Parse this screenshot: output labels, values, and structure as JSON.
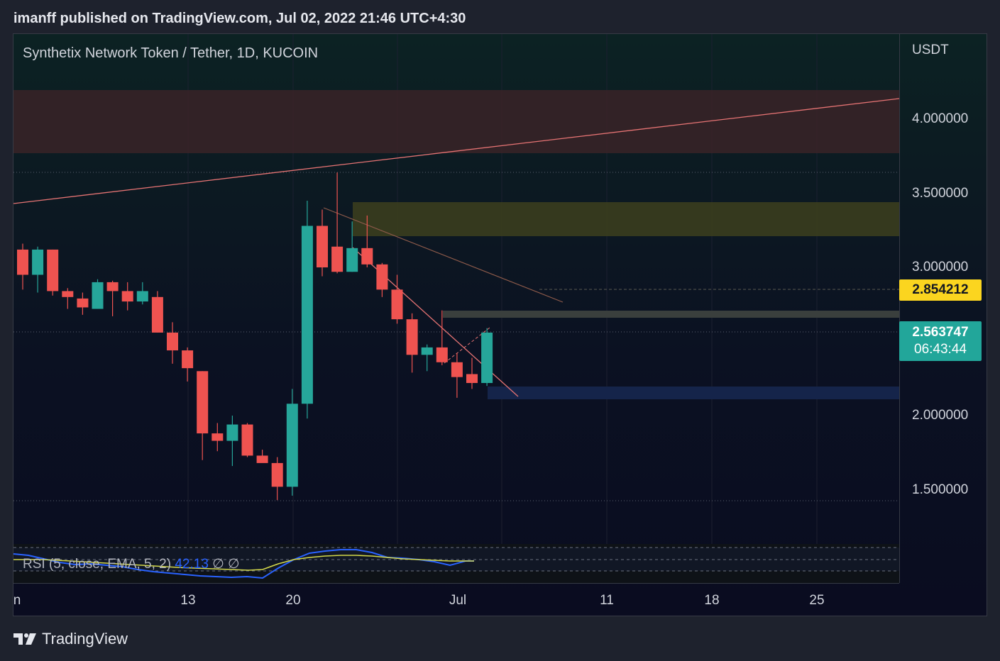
{
  "header": {
    "published": "imanff published on TradingView.com, Jul 02, 2022 21:46 UTC+4:30"
  },
  "chart": {
    "symbol": "Synthetix Network Token / Tether, 1D, KUCOIN",
    "currency": "USDT",
    "price_ticks": [
      "4.000000",
      "3.500000",
      "3.000000",
      "2.000000",
      "1.500000"
    ],
    "time_ticks": [
      "n",
      "13",
      "20",
      "Jul",
      "11",
      "18",
      "25"
    ],
    "last_price": "2.563747",
    "countdown": "06:43:44",
    "marked_price": "2.854212",
    "colors": {
      "up": "#26a69a",
      "down": "#ef5350",
      "marker": "#fbd51f"
    }
  },
  "rsi": {
    "label": "RSI (5, close, EMA, 5, 2)",
    "value": "42.13",
    "extra1": "∅",
    "extra2": "∅"
  },
  "footer": {
    "brand": "TradingView"
  },
  "chart_data": {
    "type": "candlestick",
    "title": "Synthetix Network Token / Tether, 1D, KUCOIN",
    "ylabel": "USDT",
    "ylim": [
      1.1,
      4.7
    ],
    "candles": [
      {
        "o": 3.12,
        "h": 3.16,
        "l": 2.85,
        "c": 2.95
      },
      {
        "o": 2.95,
        "h": 3.14,
        "l": 2.83,
        "c": 3.12
      },
      {
        "o": 3.12,
        "h": 3.12,
        "l": 2.81,
        "c": 2.84
      },
      {
        "o": 2.84,
        "h": 2.86,
        "l": 2.72,
        "c": 2.8
      },
      {
        "o": 2.79,
        "h": 2.83,
        "l": 2.68,
        "c": 2.73
      },
      {
        "o": 2.72,
        "h": 2.92,
        "l": 2.72,
        "c": 2.9
      },
      {
        "o": 2.9,
        "h": 2.91,
        "l": 2.67,
        "c": 2.84
      },
      {
        "o": 2.84,
        "h": 2.9,
        "l": 2.71,
        "c": 2.77
      },
      {
        "o": 2.77,
        "h": 2.9,
        "l": 2.75,
        "c": 2.84
      },
      {
        "o": 2.8,
        "h": 2.84,
        "l": 2.56,
        "c": 2.56
      },
      {
        "o": 2.56,
        "h": 2.63,
        "l": 2.35,
        "c": 2.44
      },
      {
        "o": 2.44,
        "h": 2.46,
        "l": 2.23,
        "c": 2.32
      },
      {
        "o": 2.3,
        "h": 2.3,
        "l": 1.7,
        "c": 1.88
      },
      {
        "o": 1.88,
        "h": 1.95,
        "l": 1.76,
        "c": 1.83
      },
      {
        "o": 1.83,
        "h": 2.0,
        "l": 1.66,
        "c": 1.94
      },
      {
        "o": 1.94,
        "h": 1.95,
        "l": 1.72,
        "c": 1.73
      },
      {
        "o": 1.73,
        "h": 1.77,
        "l": 1.71,
        "c": 1.68
      },
      {
        "o": 1.68,
        "h": 1.72,
        "l": 1.43,
        "c": 1.52
      },
      {
        "o": 1.52,
        "h": 2.18,
        "l": 1.46,
        "c": 2.08
      },
      {
        "o": 2.08,
        "h": 3.45,
        "l": 1.98,
        "c": 3.28
      },
      {
        "o": 3.28,
        "h": 3.39,
        "l": 2.94,
        "c": 3.0
      },
      {
        "o": 3.14,
        "h": 3.64,
        "l": 2.96,
        "c": 2.97
      },
      {
        "o": 2.97,
        "h": 3.31,
        "l": 2.97,
        "c": 3.13
      },
      {
        "o": 3.13,
        "h": 3.35,
        "l": 3.0,
        "c": 3.02
      },
      {
        "o": 3.02,
        "h": 3.03,
        "l": 2.8,
        "c": 2.85
      },
      {
        "o": 2.85,
        "h": 2.95,
        "l": 2.62,
        "c": 2.65
      },
      {
        "o": 2.65,
        "h": 2.69,
        "l": 2.29,
        "c": 2.41
      },
      {
        "o": 2.41,
        "h": 2.48,
        "l": 2.3,
        "c": 2.46
      },
      {
        "o": 2.46,
        "h": 2.71,
        "l": 2.34,
        "c": 2.36
      },
      {
        "o": 2.36,
        "h": 2.42,
        "l": 2.12,
        "c": 2.26
      },
      {
        "o": 2.28,
        "h": 2.39,
        "l": 2.18,
        "c": 2.22
      },
      {
        "o": 2.22,
        "h": 2.59,
        "l": 2.2,
        "c": 2.56
      }
    ]
  }
}
